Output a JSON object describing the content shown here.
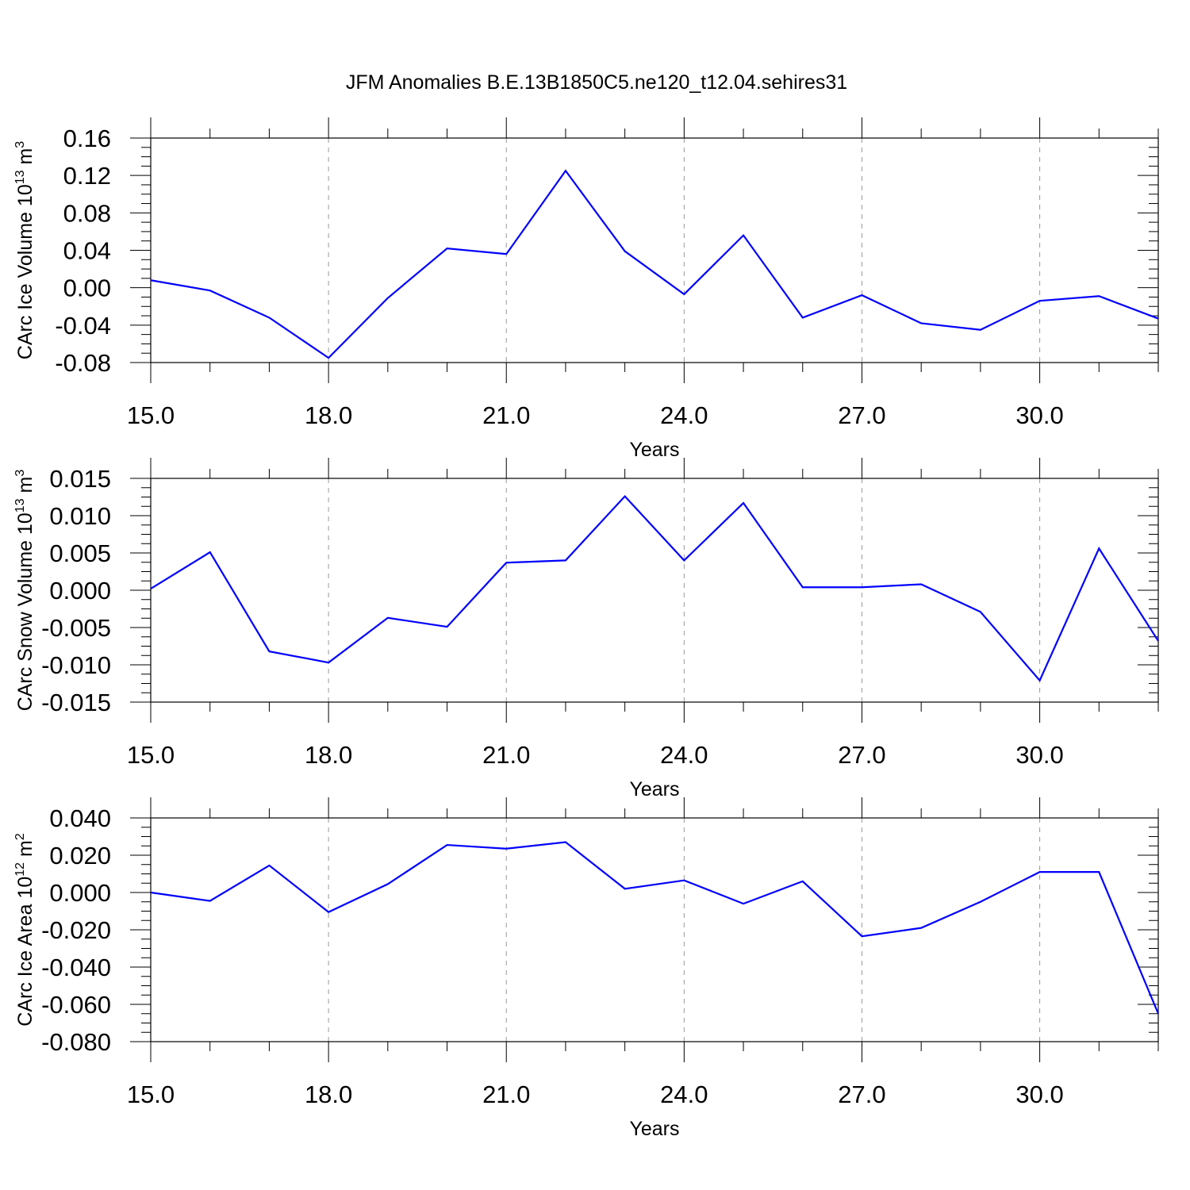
{
  "title": "JFM Anomalies B.E.13B1850C5.ne120_t12.04.sehires31",
  "colors": {
    "line": "#0000ff",
    "grid": "#999999"
  },
  "chart_data": [
    {
      "type": "line",
      "xlabel": "Years",
      "ylabel": {
        "text": "CArc Ice Volume 10",
        "sup": "13",
        "unit": " m",
        "unit_sup": "3"
      },
      "xlim": [
        15,
        32
      ],
      "ylim": [
        -0.08,
        0.16
      ],
      "xticks": [
        15,
        18,
        21,
        24,
        27,
        30
      ],
      "xtick_labels": [
        "15.0",
        "18.0",
        "21.0",
        "24.0",
        "27.0",
        "30.0"
      ],
      "yticks": [
        -0.08,
        -0.04,
        0.0,
        0.04,
        0.08,
        0.12,
        0.16
      ],
      "ytick_labels": [
        "-0.08",
        "-0.04",
        "0.00",
        "0.04",
        "0.08",
        "0.12",
        "0.16"
      ],
      "grid": "x-dashed",
      "x": [
        15,
        16,
        17,
        18,
        19,
        20,
        21,
        22,
        23,
        24,
        25,
        26,
        27,
        28,
        29,
        30,
        31,
        32
      ],
      "series": [
        {
          "values": [
            0.008,
            -0.003,
            -0.032,
            -0.075,
            -0.011,
            0.042,
            0.036,
            0.125,
            0.039,
            -0.007,
            0.056,
            -0.032,
            -0.008,
            -0.038,
            -0.045,
            -0.014,
            -0.009,
            -0.033
          ]
        }
      ]
    },
    {
      "type": "line",
      "xlabel": "Years",
      "ylabel": {
        "text": "CArc Snow Volume 10",
        "sup": "13",
        "unit": " m",
        "unit_sup": "3"
      },
      "xlim": [
        15,
        32
      ],
      "ylim": [
        -0.015,
        0.015
      ],
      "xticks": [
        15,
        18,
        21,
        24,
        27,
        30
      ],
      "xtick_labels": [
        "15.0",
        "18.0",
        "21.0",
        "24.0",
        "27.0",
        "30.0"
      ],
      "yticks": [
        -0.015,
        -0.01,
        -0.005,
        0.0,
        0.005,
        0.01,
        0.015
      ],
      "ytick_labels": [
        "-0.015",
        "-0.010",
        "-0.005",
        "0.000",
        "0.005",
        "0.010",
        "0.015"
      ],
      "grid": "x-dashed",
      "x": [
        15,
        16,
        17,
        18,
        19,
        20,
        21,
        22,
        23,
        24,
        25,
        26,
        27,
        28,
        29,
        30,
        31,
        32
      ],
      "series": [
        {
          "values": [
            0.0002,
            0.0051,
            -0.0082,
            -0.0097,
            -0.0037,
            -0.0049,
            0.0037,
            0.004,
            0.0126,
            0.004,
            0.0117,
            0.0004,
            0.0004,
            0.0008,
            -0.0029,
            -0.0121,
            0.0056,
            -0.0068
          ]
        }
      ]
    },
    {
      "type": "line",
      "xlabel": "Years",
      "ylabel": {
        "text": "CArc Ice Area 10",
        "sup": "12",
        "unit": " m",
        "unit_sup": "2"
      },
      "xlim": [
        15,
        32
      ],
      "ylim": [
        -0.08,
        0.04
      ],
      "xticks": [
        15,
        18,
        21,
        24,
        27,
        30
      ],
      "xtick_labels": [
        "15.0",
        "18.0",
        "21.0",
        "24.0",
        "27.0",
        "30.0"
      ],
      "yticks": [
        -0.08,
        -0.06,
        -0.04,
        -0.02,
        0.0,
        0.02,
        0.04
      ],
      "ytick_labels": [
        "-0.080",
        "-0.060",
        "-0.040",
        "-0.020",
        "0.000",
        "0.020",
        "0.040"
      ],
      "grid": "x-dashed",
      "x": [
        15,
        16,
        17,
        18,
        19,
        20,
        21,
        22,
        23,
        24,
        25,
        26,
        27,
        28,
        29,
        30,
        31,
        32
      ],
      "series": [
        {
          "values": [
            0.0,
            -0.0045,
            0.0145,
            -0.0105,
            0.0045,
            0.0255,
            0.0235,
            0.027,
            0.002,
            0.0065,
            -0.006,
            0.006,
            -0.0235,
            -0.019,
            -0.005,
            0.011,
            0.011,
            -0.065
          ]
        }
      ]
    }
  ]
}
